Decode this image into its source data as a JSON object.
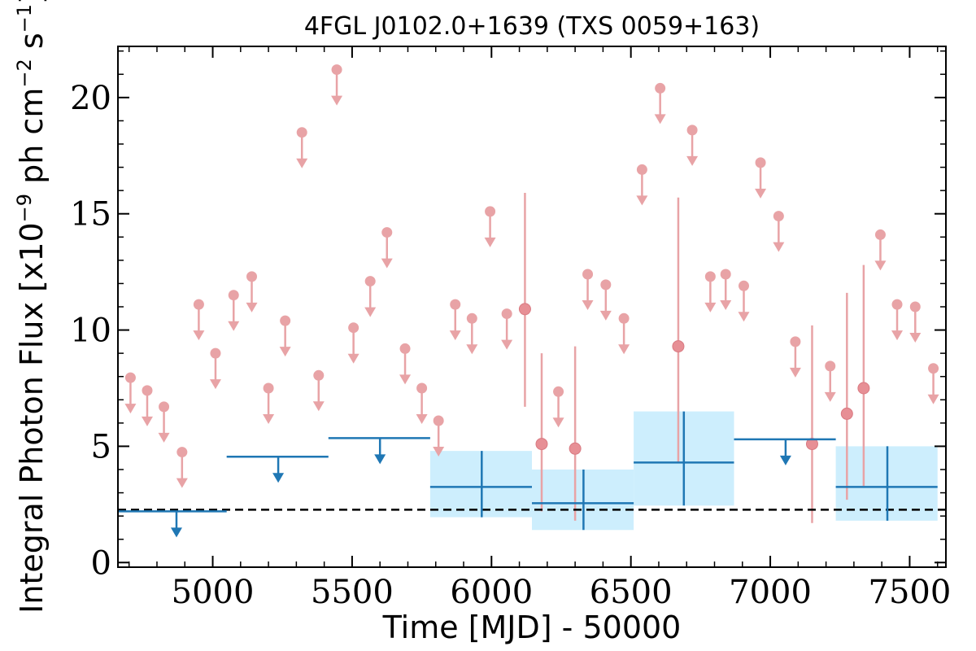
{
  "chart_data": {
    "type": "scatter",
    "title": "4FGL J0102.0+1639 (TXS 0059+163)",
    "xlabel": "Time [MJD] - 50000",
    "ylabel_prefix": "Integral Photon Flux [x10",
    "ylabel_exp1": "−9",
    "ylabel_mid": " ph cm",
    "ylabel_exp2": "−2",
    "ylabel_mid2": " s",
    "ylabel_exp3": "−1",
    "ylabel_suffix": "]",
    "xlim": [
      4660,
      7630
    ],
    "ylim": [
      -0.2,
      22.2
    ],
    "x_ticks": [
      {
        "value": 5000,
        "label": "5000"
      },
      {
        "value": 5500,
        "label": "5500"
      },
      {
        "value": 6000,
        "label": "6000"
      },
      {
        "value": 6500,
        "label": "6500"
      },
      {
        "value": 7000,
        "label": "7000"
      },
      {
        "value": 7500,
        "label": "7500"
      }
    ],
    "y_ticks": [
      {
        "value": 0,
        "label": "0"
      },
      {
        "value": 5,
        "label": "5"
      },
      {
        "value": 10,
        "label": "10"
      },
      {
        "value": 15,
        "label": "15"
      },
      {
        "value": 20,
        "label": "20"
      }
    ],
    "reference_line": 2.27,
    "colors": {
      "upper_limit": "#e8a3a6",
      "detection": "#e78f95",
      "binned": "#1f77b4",
      "band": "#cdeefd",
      "reference": "#000000"
    },
    "upper_limits": [
      {
        "x": 4705,
        "y": 7.95
      },
      {
        "x": 4765,
        "y": 7.4
      },
      {
        "x": 4825,
        "y": 6.7
      },
      {
        "x": 4890,
        "y": 4.75
      },
      {
        "x": 4950,
        "y": 11.1
      },
      {
        "x": 5010,
        "y": 9.0
      },
      {
        "x": 5075,
        "y": 11.5
      },
      {
        "x": 5140,
        "y": 12.3
      },
      {
        "x": 5200,
        "y": 7.5
      },
      {
        "x": 5260,
        "y": 10.4
      },
      {
        "x": 5320,
        "y": 18.5
      },
      {
        "x": 5380,
        "y": 8.05
      },
      {
        "x": 5445,
        "y": 21.2
      },
      {
        "x": 5505,
        "y": 10.1
      },
      {
        "x": 5565,
        "y": 12.1
      },
      {
        "x": 5625,
        "y": 14.2
      },
      {
        "x": 5690,
        "y": 9.2
      },
      {
        "x": 5750,
        "y": 7.5
      },
      {
        "x": 5810,
        "y": 6.1
      },
      {
        "x": 5870,
        "y": 11.1
      },
      {
        "x": 5930,
        "y": 10.5
      },
      {
        "x": 5995,
        "y": 15.1
      },
      {
        "x": 6055,
        "y": 10.7
      },
      {
        "x": 6240,
        "y": 7.35
      },
      {
        "x": 6345,
        "y": 12.4
      },
      {
        "x": 6410,
        "y": 11.95
      },
      {
        "x": 6475,
        "y": 10.5
      },
      {
        "x": 6540,
        "y": 16.9
      },
      {
        "x": 6605,
        "y": 20.4
      },
      {
        "x": 6720,
        "y": 18.6
      },
      {
        "x": 6785,
        "y": 12.3
      },
      {
        "x": 6840,
        "y": 12.4
      },
      {
        "x": 6905,
        "y": 11.9
      },
      {
        "x": 6965,
        "y": 17.2
      },
      {
        "x": 7030,
        "y": 14.9
      },
      {
        "x": 7090,
        "y": 9.5
      },
      {
        "x": 7215,
        "y": 8.45
      },
      {
        "x": 7395,
        "y": 14.1
      },
      {
        "x": 7455,
        "y": 11.1
      },
      {
        "x": 7520,
        "y": 11.0
      },
      {
        "x": 7585,
        "y": 8.35
      }
    ],
    "detections": [
      {
        "x": 6120,
        "y": 10.9,
        "lo": 6.7,
        "hi": 15.9
      },
      {
        "x": 6180,
        "y": 5.1,
        "lo": 2.2,
        "hi": 9.0
      },
      {
        "x": 6300,
        "y": 4.9,
        "lo": 1.8,
        "hi": 9.3
      },
      {
        "x": 6670,
        "y": 9.3,
        "lo": 4.3,
        "hi": 15.7
      },
      {
        "x": 7150,
        "y": 5.1,
        "lo": 1.7,
        "hi": 10.2
      },
      {
        "x": 7275,
        "y": 6.4,
        "lo": 2.7,
        "hi": 11.6
      },
      {
        "x": 7335,
        "y": 7.5,
        "lo": 3.3,
        "hi": 12.8
      }
    ],
    "binned_upper_limits": [
      {
        "x0": 4660,
        "x1": 5050,
        "arrow_x": 4870,
        "y": 2.2
      },
      {
        "x0": 5050,
        "x1": 5415,
        "arrow_x": 5235,
        "y": 4.55
      },
      {
        "x0": 5415,
        "x1": 5780,
        "arrow_x": 5600,
        "y": 5.35
      },
      {
        "x0": 6870,
        "x1": 7235,
        "arrow_x": 7055,
        "y": 5.3
      }
    ],
    "binned_detections": [
      {
        "x0": 5780,
        "x1": 6145,
        "x": 5965,
        "y": 3.25,
        "lo": 1.95,
        "hi": 4.8,
        "band_lo": 1.95,
        "band_hi": 4.8
      },
      {
        "x0": 6145,
        "x1": 6510,
        "x": 6330,
        "y": 2.55,
        "lo": 1.4,
        "hi": 4.0,
        "band_lo": 1.4,
        "band_hi": 4.0
      },
      {
        "x0": 6510,
        "x1": 6870,
        "x": 6690,
        "y": 4.3,
        "lo": 2.45,
        "hi": 6.5,
        "band_lo": 2.45,
        "band_hi": 6.5
      },
      {
        "x0": 7235,
        "x1": 7600,
        "x": 7420,
        "y": 3.25,
        "lo": 1.8,
        "hi": 5.0,
        "band_lo": 1.8,
        "band_hi": 5.0
      }
    ]
  }
}
